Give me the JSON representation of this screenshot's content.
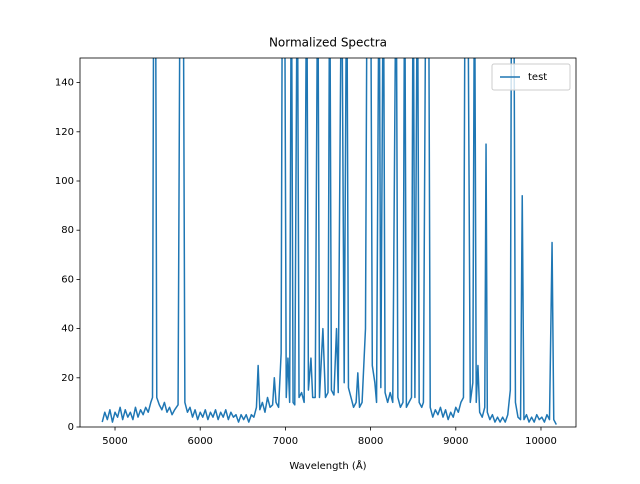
{
  "chart_data": {
    "type": "line",
    "title": "Normalized Spectra",
    "x_label": "Wavelength (Å)",
    "legend_position": "upper right",
    "xlim": [
      4589,
      10411
    ],
    "ylim": [
      0,
      150
    ],
    "xticks": [
      5000,
      6000,
      7000,
      8000,
      9000,
      10000
    ],
    "yticks": [
      0,
      20,
      40,
      60,
      80,
      100,
      120,
      140
    ],
    "x": [
      4850,
      4880,
      4910,
      4940,
      4970,
      5000,
      5030,
      5060,
      5090,
      5120,
      5150,
      5180,
      5210,
      5240,
      5270,
      5300,
      5330,
      5360,
      5390,
      5420,
      5440,
      5455,
      5475,
      5490,
      5520,
      5550,
      5580,
      5610,
      5640,
      5670,
      5700,
      5740,
      5765,
      5800,
      5820,
      5850,
      5880,
      5910,
      5940,
      5970,
      6000,
      6030,
      6060,
      6090,
      6120,
      6150,
      6180,
      6210,
      6240,
      6270,
      6300,
      6330,
      6360,
      6390,
      6420,
      6450,
      6480,
      6510,
      6540,
      6570,
      6600,
      6630,
      6660,
      6680,
      6700,
      6730,
      6760,
      6790,
      6820,
      6850,
      6870,
      6890,
      6920,
      6950,
      6965,
      6990,
      7010,
      7030,
      7050,
      7070,
      7090,
      7110,
      7140,
      7160,
      7190,
      7220,
      7250,
      7270,
      7300,
      7320,
      7350,
      7380,
      7400,
      7440,
      7470,
      7500,
      7520,
      7540,
      7570,
      7600,
      7620,
      7660,
      7690,
      7720,
      7740,
      7770,
      7800,
      7830,
      7850,
      7870,
      7900,
      7940,
      7960,
      8000,
      8020,
      8050,
      8070,
      8100,
      8120,
      8150,
      8170,
      8200,
      8230,
      8260,
      8300,
      8320,
      8350,
      8380,
      8400,
      8420,
      8450,
      8480,
      8500,
      8520,
      8550,
      8570,
      8600,
      8620,
      8650,
      8680,
      8700,
      8730,
      8760,
      8790,
      8820,
      8850,
      8880,
      8910,
      8940,
      8970,
      9000,
      9030,
      9060,
      9090,
      9110,
      9140,
      9170,
      9200,
      9220,
      9240,
      9260,
      9280,
      9310,
      9340,
      9355,
      9370,
      9400,
      9430,
      9460,
      9490,
      9520,
      9550,
      9580,
      9610,
      9640,
      9655,
      9680,
      9700,
      9730,
      9760,
      9780,
      9800,
      9830,
      9860,
      9890,
      9920,
      9950,
      9980,
      10010,
      10040,
      10070,
      10100,
      10130,
      10150,
      10180
    ],
    "series": [
      {
        "name": "test",
        "color": "#1f77b4",
        "values": [
          2,
          6,
          3,
          7,
          2,
          6,
          4,
          8,
          3,
          7,
          4,
          6,
          3,
          8,
          4,
          7,
          5,
          8,
          6,
          10,
          12,
          200,
          200,
          12,
          9,
          7,
          10,
          6,
          8,
          5,
          7,
          9,
          200,
          200,
          10,
          6,
          8,
          4,
          7,
          3,
          6,
          4,
          7,
          3,
          6,
          4,
          7,
          3,
          6,
          4,
          7,
          3,
          6,
          4,
          5,
          2,
          5,
          3,
          5,
          2,
          5,
          4,
          8,
          25,
          7,
          10,
          6,
          12,
          8,
          9,
          20,
          10,
          8,
          30,
          200,
          200,
          12,
          28,
          10,
          200,
          10,
          9,
          200,
          12,
          14,
          10,
          200,
          15,
          28,
          12,
          12,
          200,
          12,
          40,
          12,
          14,
          200,
          15,
          13,
          40,
          14,
          200,
          18,
          200,
          16,
          12,
          8,
          10,
          22,
          8,
          10,
          40,
          200,
          200,
          25,
          18,
          10,
          200,
          16,
          200,
          14,
          10,
          14,
          10,
          200,
          12,
          8,
          10,
          200,
          8,
          10,
          12,
          200,
          12,
          200,
          10,
          8,
          10,
          200,
          200,
          8,
          4,
          7,
          5,
          8,
          4,
          7,
          3,
          6,
          4,
          8,
          6,
          10,
          12,
          200,
          200,
          10,
          18,
          200,
          10,
          25,
          6,
          4,
          8,
          115,
          6,
          3,
          5,
          2,
          4,
          2,
          4,
          2,
          5,
          15,
          200,
          200,
          10,
          4,
          3,
          94,
          3,
          5,
          2,
          4,
          2,
          5,
          3,
          4,
          2,
          5,
          3,
          75,
          3,
          1
        ]
      }
    ]
  }
}
